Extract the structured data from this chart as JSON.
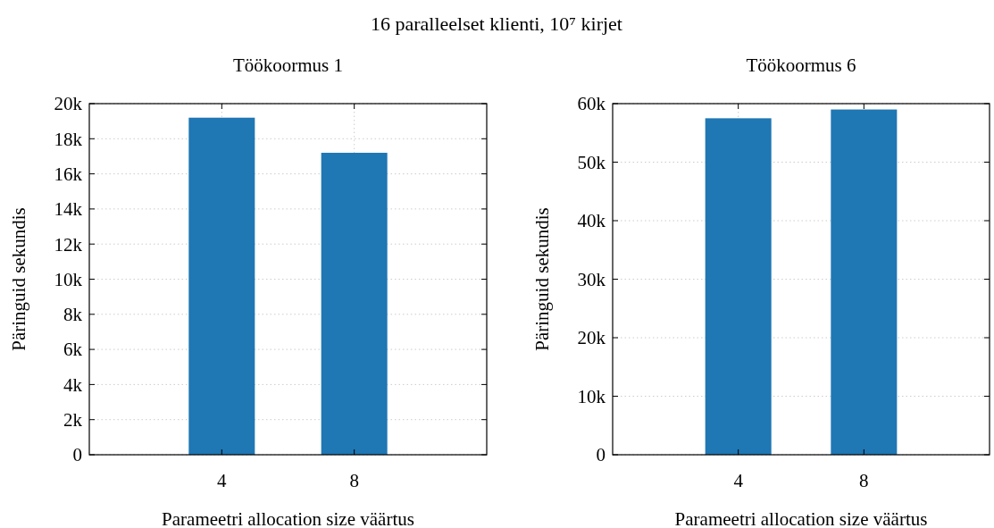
{
  "chart_data": [
    {
      "type": "bar",
      "title": "16 paralleelset klienti, 10⁷ kirjet",
      "subtitle": "Töökoormus 1",
      "xlabel": "Parameetri allocation size väärtus",
      "ylabel": "Päringuid sekundis",
      "categories": [
        "4",
        "8"
      ],
      "values": [
        19200,
        17200
      ],
      "color": "#1f77b4",
      "ylim": [
        0,
        20000
      ],
      "yticks": [
        {
          "value": 0,
          "label": "0"
        },
        {
          "value": 2000,
          "label": "2k"
        },
        {
          "value": 4000,
          "label": "4k"
        },
        {
          "value": 6000,
          "label": "6k"
        },
        {
          "value": 8000,
          "label": "8k"
        },
        {
          "value": 10000,
          "label": "10k"
        },
        {
          "value": 12000,
          "label": "12k"
        },
        {
          "value": 14000,
          "label": "14k"
        },
        {
          "value": 16000,
          "label": "16k"
        },
        {
          "value": 18000,
          "label": "18k"
        },
        {
          "value": 20000,
          "label": "20k"
        }
      ],
      "grid": true
    },
    {
      "type": "bar",
      "subtitle": "Töökoormus 6",
      "xlabel": "Parameetri allocation size väärtus",
      "ylabel": "Päringuid sekundis",
      "categories": [
        "4",
        "8"
      ],
      "values": [
        57500,
        59000
      ],
      "color": "#1f77b4",
      "ylim": [
        0,
        60000
      ],
      "yticks": [
        {
          "value": 0,
          "label": "0"
        },
        {
          "value": 10000,
          "label": "10k"
        },
        {
          "value": 20000,
          "label": "20k"
        },
        {
          "value": 30000,
          "label": "30k"
        },
        {
          "value": 40000,
          "label": "40k"
        },
        {
          "value": 50000,
          "label": "50k"
        },
        {
          "value": 60000,
          "label": "60k"
        }
      ],
      "grid": true
    }
  ]
}
